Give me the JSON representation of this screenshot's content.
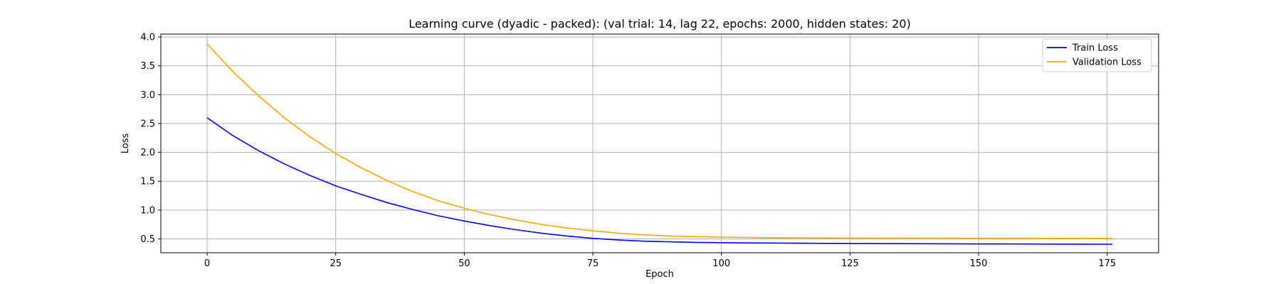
{
  "chart_data": {
    "type": "line",
    "title": "Learning curve (dyadic - packed): (val trial: 14, lag 22, epochs: 2000, hidden states: 20)",
    "xlabel": "Epoch",
    "ylabel": "Loss",
    "xlim": [
      -9,
      185
    ],
    "ylim": [
      0.26,
      4.05
    ],
    "xticks": [
      0,
      25,
      50,
      75,
      100,
      125,
      150,
      175
    ],
    "yticks": [
      0.5,
      1.0,
      1.5,
      2.0,
      2.5,
      3.0,
      3.5,
      4.0
    ],
    "xtick_labels": [
      "0",
      "25",
      "50",
      "75",
      "100",
      "125",
      "150",
      "175"
    ],
    "ytick_labels": [
      "0.5",
      "1.0",
      "1.5",
      "2.0",
      "2.5",
      "3.0",
      "3.5",
      "4.0"
    ],
    "grid": true,
    "legend_position": "top-right",
    "x": [
      0,
      5,
      10,
      15,
      20,
      25,
      30,
      35,
      40,
      45,
      50,
      55,
      60,
      65,
      70,
      75,
      80,
      85,
      90,
      95,
      100,
      105,
      110,
      115,
      120,
      125,
      130,
      135,
      140,
      145,
      150,
      155,
      160,
      165,
      170,
      176
    ],
    "series": [
      {
        "name": "Train Loss",
        "color": "#0000ff",
        "values": [
          2.6,
          2.29,
          2.03,
          1.8,
          1.6,
          1.42,
          1.27,
          1.13,
          1.01,
          0.9,
          0.81,
          0.73,
          0.66,
          0.6,
          0.55,
          0.51,
          0.48,
          0.46,
          0.45,
          0.44,
          0.435,
          0.43,
          0.428,
          0.425,
          0.423,
          0.421,
          0.419,
          0.418,
          0.416,
          0.415,
          0.413,
          0.412,
          0.411,
          0.41,
          0.409,
          0.408
        ]
      },
      {
        "name": "Validation Loss",
        "color": "#ffa500",
        "values": [
          3.88,
          3.4,
          2.98,
          2.6,
          2.27,
          1.98,
          1.73,
          1.51,
          1.32,
          1.16,
          1.03,
          0.92,
          0.83,
          0.75,
          0.69,
          0.64,
          0.6,
          0.57,
          0.55,
          0.54,
          0.53,
          0.525,
          0.52,
          0.518,
          0.516,
          0.515,
          0.514,
          0.513,
          0.512,
          0.511,
          0.51,
          0.51,
          0.51,
          0.509,
          0.509,
          0.509
        ]
      }
    ]
  }
}
